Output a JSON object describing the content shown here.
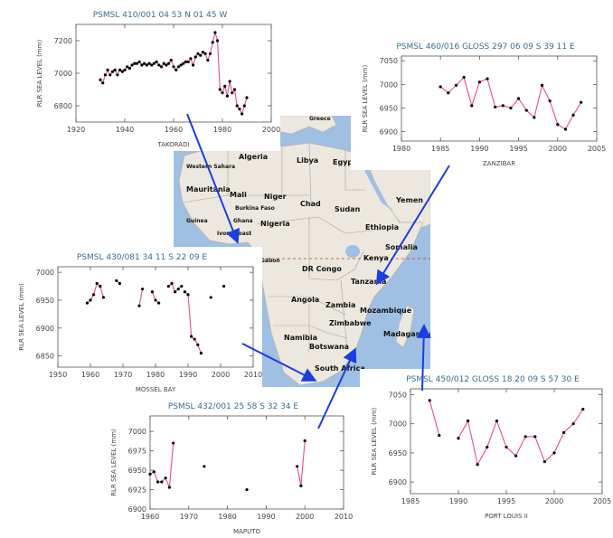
{
  "map": {
    "countries": [
      {
        "key": "greece",
        "label": "Greece"
      },
      {
        "key": "algeria",
        "label": "Algeria"
      },
      {
        "key": "libya",
        "label": "Libya"
      },
      {
        "key": "egypt",
        "label": "Egypt"
      },
      {
        "key": "western-sahara",
        "label": "Western Sahara"
      },
      {
        "key": "mauritania",
        "label": "Mauritania"
      },
      {
        "key": "mali",
        "label": "Mali"
      },
      {
        "key": "niger",
        "label": "Niger"
      },
      {
        "key": "chad",
        "label": "Chad"
      },
      {
        "key": "sudan",
        "label": "Sudan"
      },
      {
        "key": "yemen",
        "label": "Yemen"
      },
      {
        "key": "burkina-faso",
        "label": "Burkina Faso"
      },
      {
        "key": "guinea",
        "label": "Guinea"
      },
      {
        "key": "ghana",
        "label": "Ghana"
      },
      {
        "key": "nigeria",
        "label": "Nigeria"
      },
      {
        "key": "ethiopia",
        "label": "Ethiopia"
      },
      {
        "key": "ivory-coast",
        "label": "Ivory Coast"
      },
      {
        "key": "somalia",
        "label": "Somalia"
      },
      {
        "key": "gabon",
        "label": "Gabon"
      },
      {
        "key": "dr-congo",
        "label": "DR Congo"
      },
      {
        "key": "kenya",
        "label": "Kenya"
      },
      {
        "key": "tanzania",
        "label": "Tanzania"
      },
      {
        "key": "angola",
        "label": "Angola"
      },
      {
        "key": "zambia",
        "label": "Zambia"
      },
      {
        "key": "mozambique",
        "label": "Mozambique"
      },
      {
        "key": "zimbabwe",
        "label": "Zimbabwe"
      },
      {
        "key": "namibia",
        "label": "Namibia"
      },
      {
        "key": "botswana",
        "label": "Botswana"
      },
      {
        "key": "madagascar",
        "label": "Madagascar"
      },
      {
        "key": "south-africa",
        "label": "South Africa"
      }
    ]
  },
  "colors": {
    "line": "#e8507a",
    "point": "#000000",
    "frame": "#555555",
    "text": "#444444",
    "title": "#3a6e8f",
    "arrow": "#1a3ee0"
  },
  "chart_data": [
    {
      "id": "takoradi",
      "type": "line",
      "title": "PSMSL 410/001    04 53 N    01 45 W",
      "xlabel": "TAKORADI",
      "ylabel": "RLR SEA LEVEL (mm)",
      "xlim": [
        1920,
        2000
      ],
      "ylim": [
        6700,
        7300
      ],
      "xticks": [
        1920,
        1940,
        1960,
        1980,
        2000
      ],
      "yticks": [
        6800,
        7000,
        7200
      ],
      "series": [
        {
          "x": [
            1930,
            1931,
            1932,
            1933,
            1934,
            1935,
            1936,
            1937,
            1938,
            1939,
            1940,
            1941,
            1942,
            1943,
            1944,
            1945,
            1946,
            1947,
            1948,
            1949,
            1950,
            1951,
            1952,
            1953,
            1954,
            1955,
            1956,
            1957,
            1958,
            1959,
            1960,
            1961,
            1962,
            1963,
            1964,
            1965,
            1966,
            1967,
            1968,
            1969,
            1970,
            1971,
            1972,
            1973,
            1974,
            1975,
            1976,
            1977,
            1978,
            1979,
            1980,
            1981,
            1982,
            1983,
            1984,
            1985,
            1986,
            1987,
            1988,
            1989,
            1990
          ],
          "y": [
            6960,
            6940,
            6990,
            7020,
            6990,
            7010,
            7020,
            6990,
            7020,
            7010,
            7020,
            7040,
            7030,
            7050,
            7060,
            7060,
            7070,
            7050,
            7060,
            7050,
            7060,
            7050,
            7060,
            7070,
            7050,
            7040,
            7060,
            7050,
            7060,
            7080,
            7040,
            7020,
            7040,
            7050,
            7060,
            7070,
            7070,
            7090,
            7050,
            7100,
            7120,
            7110,
            7130,
            7120,
            7080,
            7120,
            7190,
            7250,
            7200,
            6900,
            6880,
            6920,
            6860,
            6950,
            6880,
            6900,
            6800,
            6780,
            6750,
            6800,
            6850
          ]
        }
      ]
    },
    {
      "id": "zanzibar",
      "type": "line",
      "title": "PSMSL 460/016    GLOSS 297     06 09 S     39 11 E",
      "xlabel": "ZANZIBAR",
      "ylabel": "RLR SEA LEVEL (mm)",
      "xlim": [
        1980,
        2005
      ],
      "ylim": [
        6880,
        7060
      ],
      "xticks": [
        1980,
        1985,
        1990,
        1995,
        2000,
        2005
      ],
      "yticks": [
        6900,
        6950,
        7000,
        7050
      ],
      "series": [
        {
          "x": [
            1985,
            1986,
            1987,
            1988,
            1989,
            1990,
            1991,
            1992,
            1993,
            1994,
            1995,
            1996,
            1997,
            1998,
            1999,
            2000,
            2001,
            2002,
            2003
          ],
          "y": [
            6995,
            6982,
            6998,
            7015,
            6955,
            7005,
            7012,
            6952,
            6955,
            6950,
            6970,
            6945,
            6930,
            6998,
            6965,
            6915,
            6905,
            6935,
            6962
          ]
        }
      ]
    },
    {
      "id": "mossel-bay",
      "type": "line",
      "title": "PSMSL 430/081     34 11 S     22 09 E",
      "xlabel": "MOSSEL BAY",
      "ylabel": "RLR SEA LEVEL (mm)",
      "xlim": [
        1950,
        2010
      ],
      "ylim": [
        6830,
        7010
      ],
      "xticks": [
        1950,
        1960,
        1970,
        1980,
        1990,
        2000,
        2010
      ],
      "yticks": [
        6850,
        6900,
        6950,
        7000
      ],
      "series": [
        {
          "x": [
            1959,
            1960,
            1961,
            1962,
            1963,
            1964,
            1968,
            1969,
            1975,
            1976,
            1979,
            1980,
            1981,
            1984,
            1985,
            1986,
            1987,
            1988,
            1989,
            1990,
            1991,
            1992,
            1993,
            1994,
            1997,
            2001
          ],
          "y": [
            6945,
            6950,
            6960,
            6980,
            6975,
            6955,
            6985,
            6980,
            6940,
            6970,
            6965,
            6950,
            6945,
            6975,
            6980,
            6965,
            6970,
            6975,
            6965,
            6960,
            6885,
            6880,
            6870,
            6855,
            6955,
            6975
          ],
          "connect": [
            [
              0,
              1
            ],
            [
              1,
              2
            ],
            [
              2,
              3
            ],
            [
              3,
              4
            ],
            [
              4,
              5
            ],
            [
              6,
              7
            ],
            [
              8,
              9
            ],
            [
              10,
              11
            ],
            [
              11,
              12
            ],
            [
              13,
              14
            ],
            [
              14,
              15
            ],
            [
              15,
              16
            ],
            [
              16,
              17
            ],
            [
              18,
              19
            ],
            [
              19,
              20
            ],
            [
              20,
              21
            ],
            [
              21,
              22
            ],
            [
              22,
              23
            ]
          ]
        }
      ]
    },
    {
      "id": "maputo",
      "type": "line",
      "title": "PSMSL 432/001     25 58 S     32 34 E",
      "xlabel": "MAPUTO",
      "ylabel": "RLR SEA LEVEL (mm)",
      "xlim": [
        1960,
        2010
      ],
      "ylim": [
        6900,
        7020
      ],
      "xticks": [
        1960,
        1970,
        1980,
        1990,
        2000,
        2010
      ],
      "yticks": [
        6900,
        6925,
        6950,
        6975,
        7000
      ],
      "series": [
        {
          "x": [
            1960,
            1961,
            1962,
            1963,
            1964,
            1965,
            1966,
            1974,
            1985,
            1998,
            1999,
            2000
          ],
          "y": [
            6945,
            6948,
            6935,
            6935,
            6940,
            6928,
            6985,
            6955,
            6925,
            6955,
            6930,
            6988
          ],
          "connect": [
            [
              0,
              1
            ],
            [
              1,
              2
            ],
            [
              2,
              3
            ],
            [
              3,
              4
            ],
            [
              4,
              5
            ],
            [
              5,
              6
            ],
            [
              9,
              10
            ],
            [
              10,
              11
            ]
          ]
        }
      ]
    },
    {
      "id": "port-louis",
      "type": "line",
      "title": "PSMSL 450/012     GLOSS  18     20 09 S     57 30 E",
      "xlabel": "PORT LOUIS II",
      "ylabel": "RLR SEA LEVEL (mm)",
      "xlim": [
        1985,
        2005
      ],
      "ylim": [
        6880,
        7060
      ],
      "xticks": [
        1985,
        1990,
        1995,
        2000,
        2005
      ],
      "yticks": [
        6900,
        6950,
        7000,
        7050
      ],
      "series": [
        {
          "x": [
            1987,
            1988,
            1990,
            1991,
            1992,
            1993,
            1994,
            1995,
            1996,
            1997,
            1998,
            1999,
            2000,
            2001,
            2002,
            2003
          ],
          "y": [
            7040,
            6980,
            6975,
            7005,
            6930,
            6960,
            7005,
            6960,
            6945,
            6978,
            6978,
            6935,
            6950,
            6985,
            7000,
            7025
          ],
          "connect": [
            [
              0,
              1
            ],
            [
              2,
              3
            ],
            [
              3,
              4
            ],
            [
              4,
              5
            ],
            [
              5,
              6
            ],
            [
              6,
              7
            ],
            [
              7,
              8
            ],
            [
              8,
              9
            ],
            [
              9,
              10
            ],
            [
              10,
              11
            ],
            [
              11,
              12
            ],
            [
              12,
              13
            ],
            [
              13,
              14
            ],
            [
              14,
              15
            ]
          ]
        }
      ]
    }
  ]
}
